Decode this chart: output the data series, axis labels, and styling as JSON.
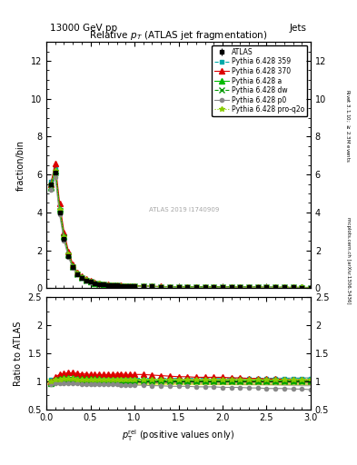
{
  "title_main": "Relative $p_{T}$ (ATLAS jet fragmentation)",
  "header_left": "13000 GeV pp",
  "header_right": "Jets",
  "ylabel_main": "fraction/bin",
  "ylabel_ratio": "Ratio to ATLAS",
  "xlabel": "$p_{\\mathrm{T}}^{\\mathrm{rel}}$ (positive values only)",
  "right_label_top": "Rivet 3.1.10; $\\geq$ 2.3M events",
  "right_label_bottom": "mcplots.cern.ch [arXiv:1306.3436]",
  "watermark": "ATLAS 2019 I1740909",
  "ylim_main": [
    0,
    13
  ],
  "ylim_ratio": [
    0.5,
    2.5
  ],
  "xlim": [
    0,
    3.0
  ],
  "x_data": [
    0.05,
    0.1,
    0.15,
    0.2,
    0.25,
    0.3,
    0.35,
    0.4,
    0.45,
    0.5,
    0.55,
    0.6,
    0.65,
    0.7,
    0.75,
    0.8,
    0.85,
    0.9,
    0.95,
    1.0,
    1.1,
    1.2,
    1.3,
    1.4,
    1.5,
    1.6,
    1.7,
    1.8,
    1.9,
    2.0,
    2.1,
    2.2,
    2.3,
    2.4,
    2.5,
    2.6,
    2.7,
    2.8,
    2.9,
    3.0
  ],
  "atlas_y": [
    5.5,
    6.1,
    4.0,
    2.6,
    1.7,
    1.1,
    0.75,
    0.55,
    0.42,
    0.34,
    0.27,
    0.23,
    0.2,
    0.17,
    0.15,
    0.14,
    0.13,
    0.12,
    0.115,
    0.11,
    0.1,
    0.09,
    0.085,
    0.08,
    0.075,
    0.07,
    0.068,
    0.065,
    0.062,
    0.06,
    0.058,
    0.056,
    0.054,
    0.052,
    0.05,
    0.048,
    0.046,
    0.044,
    0.042,
    0.04
  ],
  "atlas_yerr": [
    0.1,
    0.1,
    0.08,
    0.06,
    0.04,
    0.03,
    0.02,
    0.015,
    0.01,
    0.008,
    0.007,
    0.006,
    0.005,
    0.005,
    0.004,
    0.004,
    0.003,
    0.003,
    0.003,
    0.003,
    0.003,
    0.003,
    0.003,
    0.003,
    0.003,
    0.003,
    0.003,
    0.003,
    0.003,
    0.003,
    0.003,
    0.003,
    0.003,
    0.003,
    0.003,
    0.003,
    0.003,
    0.003,
    0.003,
    0.003
  ],
  "series": [
    {
      "label": "Pythia 6.428 359",
      "color": "#00aaaa",
      "linestyle": "--",
      "marker": "s",
      "markersize": 3,
      "ratio": [
        1.02,
        1.03,
        1.04,
        1.05,
        1.05,
        1.04,
        1.03,
        1.03,
        1.03,
        1.03,
        1.03,
        1.03,
        1.03,
        1.03,
        1.04,
        1.04,
        1.04,
        1.04,
        1.04,
        1.05,
        1.05,
        1.05,
        1.05,
        1.05,
        1.05,
        1.05,
        1.05,
        1.05,
        1.05,
        1.05,
        1.05,
        1.05,
        1.05,
        1.05,
        1.05,
        1.05,
        1.05,
        1.05,
        1.05,
        1.05
      ]
    },
    {
      "label": "Pythia 6.428 370",
      "color": "#dd0000",
      "linestyle": "-",
      "marker": "^",
      "markersize": 4,
      "ratio": [
        1.0,
        1.08,
        1.12,
        1.14,
        1.15,
        1.15,
        1.14,
        1.13,
        1.13,
        1.12,
        1.12,
        1.12,
        1.12,
        1.12,
        1.12,
        1.13,
        1.13,
        1.12,
        1.12,
        1.12,
        1.12,
        1.11,
        1.1,
        1.09,
        1.08,
        1.08,
        1.07,
        1.07,
        1.07,
        1.07,
        1.06,
        1.06,
        1.05,
        1.05,
        1.04,
        1.04,
        1.03,
        1.02,
        1.02,
        1.01
      ]
    },
    {
      "label": "Pythia 6.428 a",
      "color": "#00bb00",
      "linestyle": "-",
      "marker": "^",
      "markersize": 4,
      "ratio": [
        0.97,
        1.02,
        1.05,
        1.06,
        1.06,
        1.06,
        1.05,
        1.05,
        1.04,
        1.04,
        1.04,
        1.04,
        1.03,
        1.03,
        1.03,
        1.03,
        1.03,
        1.03,
        1.03,
        1.03,
        1.03,
        1.02,
        1.02,
        1.02,
        1.01,
        1.01,
        1.01,
        1.01,
        1.01,
        1.01,
        1.01,
        1.01,
        1.01,
        1.01,
        1.01,
        1.01,
        1.01,
        1.01,
        1.01,
        1.01
      ]
    },
    {
      "label": "Pythia 6.428 dw",
      "color": "#009900",
      "linestyle": "--",
      "marker": "x",
      "markersize": 4,
      "ratio": [
        0.96,
        1.0,
        1.02,
        1.03,
        1.03,
        1.02,
        1.01,
        1.01,
        1.01,
        1.0,
        1.0,
        1.0,
        1.0,
        1.0,
        1.0,
        1.0,
        1.0,
        1.0,
        1.0,
        1.0,
        1.0,
        1.0,
        1.0,
        1.0,
        1.0,
        1.0,
        1.0,
        1.0,
        1.0,
        1.0,
        1.0,
        1.0,
        1.0,
        1.0,
        1.0,
        1.0,
        1.0,
        1.0,
        1.0,
        1.0
      ]
    },
    {
      "label": "Pythia 6.428 p0",
      "color": "#888888",
      "linestyle": "-",
      "marker": "o",
      "markersize": 3,
      "ratio": [
        0.94,
        0.96,
        0.97,
        0.97,
        0.97,
        0.96,
        0.96,
        0.95,
        0.95,
        0.95,
        0.95,
        0.94,
        0.94,
        0.94,
        0.94,
        0.94,
        0.93,
        0.93,
        0.93,
        0.93,
        0.93,
        0.92,
        0.92,
        0.91,
        0.91,
        0.91,
        0.9,
        0.9,
        0.9,
        0.89,
        0.89,
        0.89,
        0.88,
        0.88,
        0.87,
        0.87,
        0.87,
        0.86,
        0.86,
        0.85
      ]
    },
    {
      "label": "Pythia 6.428 pro-q2o",
      "color": "#88cc00",
      "linestyle": ":",
      "marker": "*",
      "markersize": 4,
      "ratio": [
        1.0,
        1.02,
        1.03,
        1.04,
        1.04,
        1.04,
        1.03,
        1.03,
        1.03,
        1.02,
        1.02,
        1.02,
        1.02,
        1.02,
        1.02,
        1.02,
        1.02,
        1.02,
        1.02,
        1.02,
        1.02,
        1.02,
        1.02,
        1.02,
        1.02,
        1.02,
        1.02,
        1.02,
        1.02,
        1.02,
        1.02,
        1.02,
        1.02,
        1.02,
        1.02,
        1.02,
        1.02,
        1.02,
        1.02,
        1.02
      ]
    }
  ]
}
